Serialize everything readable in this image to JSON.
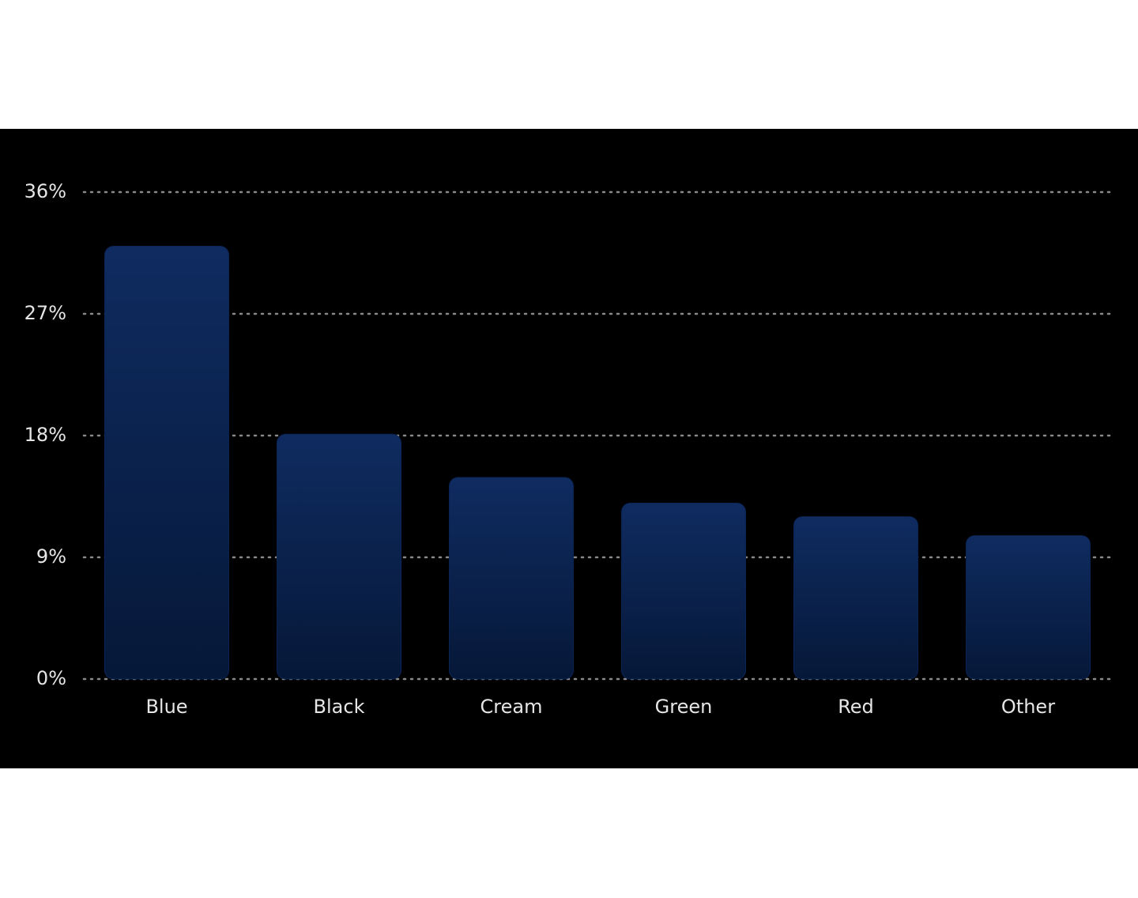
{
  "chart_data": {
    "type": "bar",
    "categories": [
      "Blue",
      "Black",
      "Cream",
      "Green",
      "Red",
      "Other"
    ],
    "values": [
      32,
      18.1,
      14.9,
      13,
      12,
      10.6
    ],
    "color": "#0b2556",
    "ylim": [
      0,
      36
    ],
    "yticks": [
      {
        "value": 0,
        "label": "0%"
      },
      {
        "value": 9,
        "label": "9%"
      },
      {
        "value": 18,
        "label": "18%"
      },
      {
        "value": 27,
        "label": "27%"
      },
      {
        "value": 36,
        "label": "36%"
      }
    ],
    "grid": true
  }
}
